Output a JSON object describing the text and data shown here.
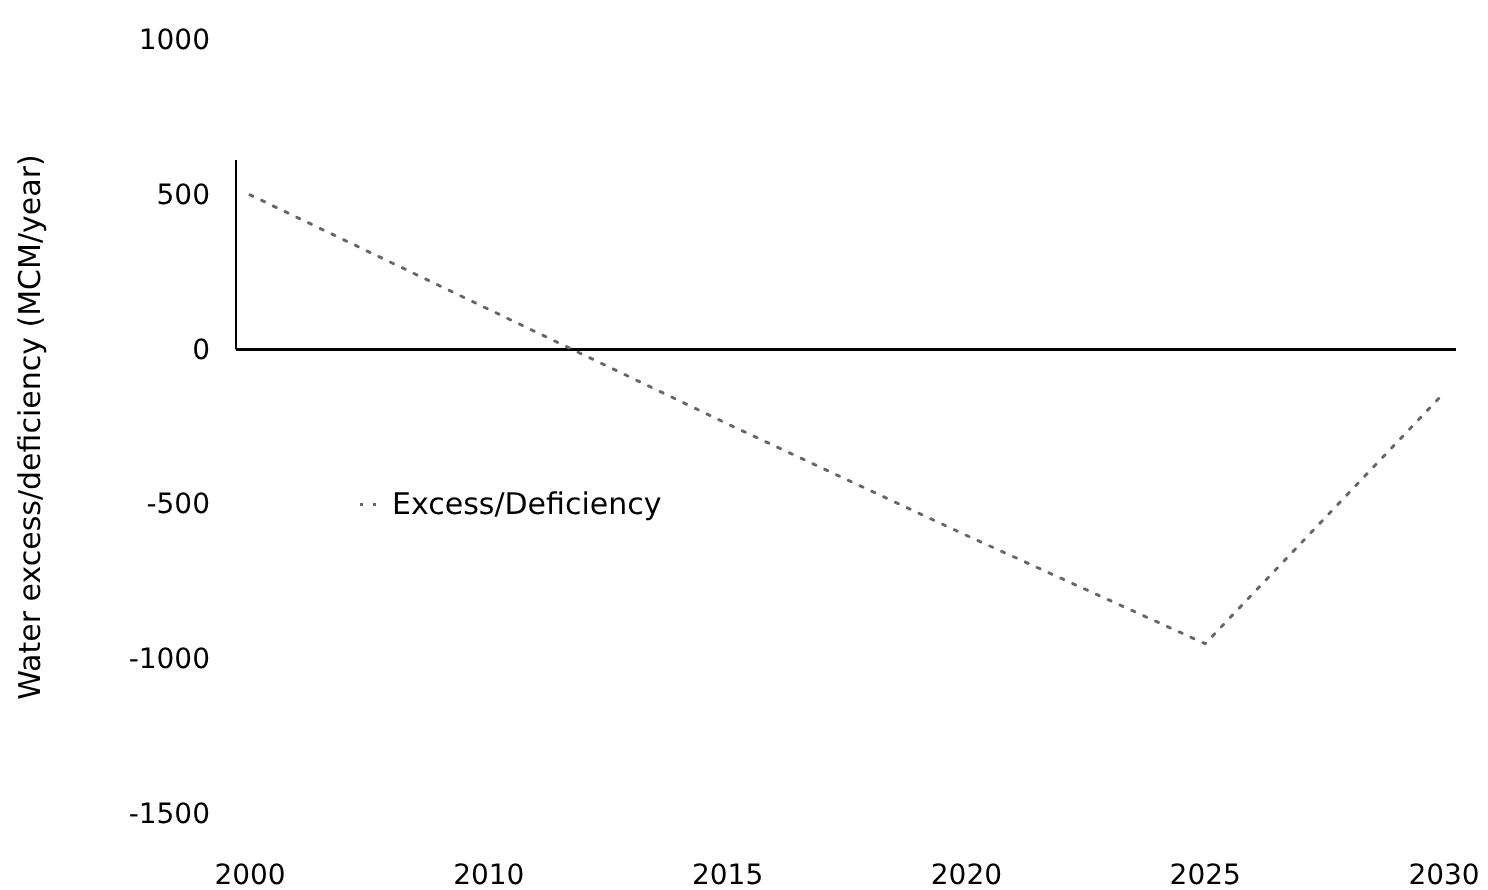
{
  "chart_data": {
    "type": "line",
    "ylabel": "Water excess/deficiency (MCM/year)",
    "categories": [
      "2000",
      "2010",
      "2015",
      "2020",
      "2025",
      "2030"
    ],
    "series": [
      {
        "name": "Excess/Deficiency",
        "color": "#666666",
        "values": [
          500,
          130,
          -240,
          -600,
          -950,
          -140
        ]
      }
    ],
    "ylim": [
      -1500,
      1000
    ],
    "yticks": [
      -1500,
      -1000,
      -500,
      0,
      500,
      1000
    ],
    "line_style": "dotted",
    "marker": "none",
    "legend": "left"
  }
}
